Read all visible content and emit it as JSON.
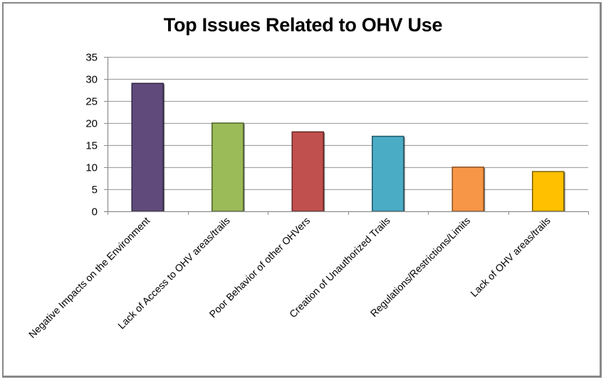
{
  "chart_data": {
    "type": "bar",
    "title": "Top Issues Related to OHV Use",
    "xlabel": "",
    "ylabel": "",
    "ylim": [
      0,
      35
    ],
    "yticks": [
      0,
      5,
      10,
      15,
      20,
      25,
      30,
      35
    ],
    "grid": true,
    "legend": "none",
    "categories": [
      "Negative Impacts on the Environment",
      "Lack of Access to OHV areas/trails",
      "Poor Behavior of other OHVers",
      "Creation of Unauthorized Trails",
      "Regulations/Restrictions/Limits",
      "Lack of OHV areas/trails"
    ],
    "values": [
      29,
      20,
      18,
      17,
      10,
      9
    ],
    "colors": [
      "#604a7b",
      "#9bbb59",
      "#c0504d",
      "#4bacc6",
      "#f79646",
      "#ffc000"
    ],
    "border_colors": [
      "#2e2340",
      "#4f6228",
      "#632523",
      "#215968",
      "#8a4d1a",
      "#7f6000"
    ]
  },
  "colors": {
    "gridline": "#a6a6a6",
    "axis": "#8c8c8c",
    "frame": "#888888"
  }
}
